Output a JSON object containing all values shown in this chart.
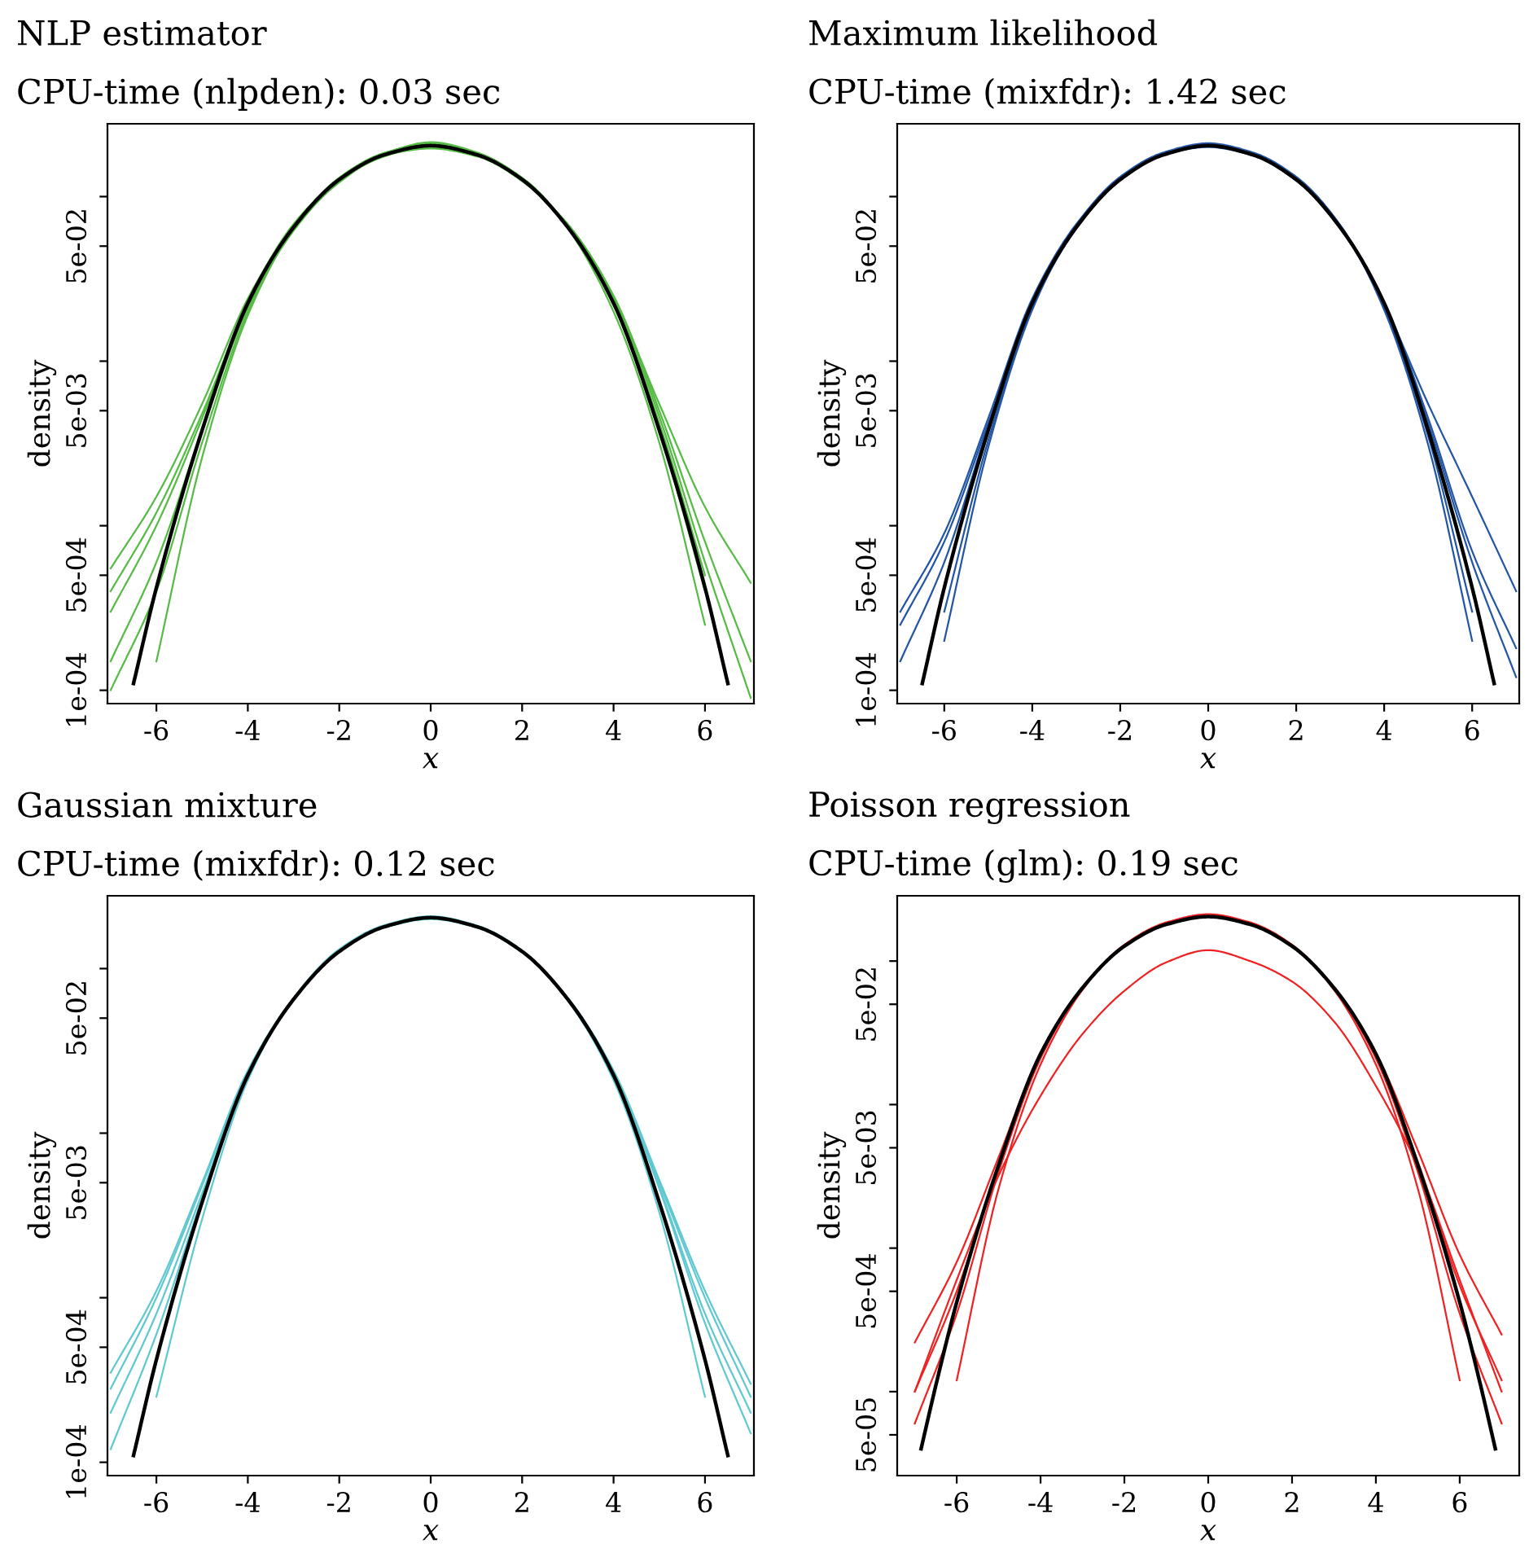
{
  "chart_data": [
    {
      "type": "line",
      "title": "NLP estimator",
      "subtitle": "CPU-time (nlpden): 0.03 sec",
      "xlabel": "x",
      "ylabel": "density",
      "log": true,
      "grid": false,
      "xlim": [
        -7.07,
        7.07
      ],
      "xticks": [
        -6,
        -4,
        -2,
        0,
        2,
        4,
        6
      ],
      "ylim": [
        8.3e-05,
        0.277
      ],
      "yticks": [
        {
          "value": 0.0001,
          "label": "1e-04"
        },
        {
          "value": 0.0005,
          "label": "5e-04"
        },
        {
          "value": 0.001,
          "label": null
        },
        {
          "value": 0.005,
          "label": "5e-03"
        },
        {
          "value": 0.01,
          "label": null
        },
        {
          "value": 0.05,
          "label": "5e-02"
        },
        {
          "value": 0.1,
          "label": null
        }
      ],
      "series": [
        {
          "color": "#55bb44",
          "x": [
            -7,
            -6,
            -5,
            -4,
            -3,
            -2,
            -1,
            0,
            1,
            2,
            3,
            4,
            5,
            6,
            7
          ],
          "values": [
            0.00055,
            0.0015,
            0.0055,
            0.024,
            0.066,
            0.128,
            0.18,
            0.2,
            0.18,
            0.127,
            0.066,
            0.024,
            0.0055,
            0.0013,
            0.00045
          ]
        },
        {
          "color": "#55bb44",
          "x": [
            -6,
            -5,
            -4,
            -3,
            -2,
            -1,
            0,
            1,
            2,
            3,
            4,
            5,
            6
          ],
          "values": [
            0.00015,
            0.0026,
            0.019,
            0.064,
            0.13,
            0.185,
            0.21,
            0.185,
            0.13,
            0.064,
            0.02,
            0.0032,
            0.00025
          ]
        },
        {
          "color": "#55bb44",
          "x": [
            -7,
            -6,
            -5,
            -4,
            -3,
            -2,
            -1,
            0,
            1,
            2,
            3,
            4,
            5,
            6,
            7
          ],
          "values": [
            0.0003,
            0.001,
            0.0045,
            0.023,
            0.068,
            0.126,
            0.176,
            0.205,
            0.183,
            0.124,
            0.068,
            0.025,
            0.005,
            0.0008,
            0.00015
          ]
        },
        {
          "color": "#55bb44",
          "x": [
            -7,
            -6,
            -5,
            -4,
            -3,
            -2,
            -1,
            0,
            1,
            2,
            3,
            4,
            5,
            6
          ],
          "values": [
            0.00015,
            0.0006,
            0.0038,
            0.021,
            0.062,
            0.124,
            0.182,
            0.214,
            0.186,
            0.128,
            0.065,
            0.023,
            0.0042,
            0.0005
          ]
        },
        {
          "color": "#55bb44",
          "x": [
            -7,
            -6,
            -5,
            -4,
            -3,
            -2,
            -1,
            0,
            1,
            2,
            3,
            4,
            5,
            6,
            7
          ],
          "values": [
            0.0004,
            0.0012,
            0.0048,
            0.022,
            0.063,
            0.122,
            0.178,
            0.196,
            0.176,
            0.125,
            0.067,
            0.024,
            0.0046,
            0.0006,
            9e-05
          ]
        },
        {
          "color": "#55bb44",
          "x": [
            -7,
            -6,
            -5,
            -4,
            -3,
            -2,
            -1,
            0,
            1,
            2,
            3,
            4,
            5,
            6
          ],
          "values": [
            0.0001,
            0.0004,
            0.0032,
            0.02,
            0.065,
            0.13,
            0.183,
            0.208,
            0.18,
            0.13,
            0.066,
            0.022,
            0.0038,
            0.0004
          ]
        },
        {
          "color": "#000000",
          "x": [
            -6.5,
            -6,
            -5,
            -4,
            -3,
            -2,
            -1,
            0,
            1,
            2,
            3,
            4,
            5,
            6,
            6.5
          ],
          "values": [
            0.00011,
            0.00042,
            0.0038,
            0.0225,
            0.065,
            0.127,
            0.18,
            0.204,
            0.18,
            0.127,
            0.065,
            0.0225,
            0.0038,
            0.00042,
            0.00011
          ]
        }
      ]
    },
    {
      "type": "line",
      "title": "Maximum likelihood",
      "subtitle": "CPU-time (mixfdr): 1.42 sec",
      "xlabel": "x",
      "ylabel": "density",
      "log": true,
      "grid": false,
      "xlim": [
        -7.07,
        7.07
      ],
      "xticks": [
        -6,
        -4,
        -2,
        0,
        2,
        4,
        6
      ],
      "ylim": [
        8.3e-05,
        0.277
      ],
      "yticks": [
        {
          "value": 0.0001,
          "label": "1e-04"
        },
        {
          "value": 0.0005,
          "label": "5e-04"
        },
        {
          "value": 0.001,
          "label": null
        },
        {
          "value": 0.005,
          "label": "5e-03"
        },
        {
          "value": 0.01,
          "label": null
        },
        {
          "value": 0.05,
          "label": "5e-02"
        },
        {
          "value": 0.1,
          "label": null
        }
      ],
      "series": [
        {
          "color": "#2255a4",
          "x": [
            -7,
            -6,
            -5,
            -4,
            -3,
            -2,
            -1,
            0,
            1,
            2,
            3,
            4,
            5,
            6,
            7
          ],
          "values": [
            0.0003,
            0.0009,
            0.0045,
            0.024,
            0.068,
            0.13,
            0.182,
            0.206,
            0.182,
            0.127,
            0.066,
            0.023,
            0.0045,
            0.0007,
            0.00018
          ]
        },
        {
          "color": "#2255a4",
          "x": [
            -7,
            -6,
            -5,
            -4,
            -3,
            -2,
            -1,
            0,
            1,
            2,
            3,
            4,
            5,
            6,
            7
          ],
          "values": [
            0.00015,
            0.0006,
            0.004,
            0.023,
            0.066,
            0.128,
            0.18,
            0.2,
            0.178,
            0.125,
            0.064,
            0.022,
            0.0042,
            0.0006,
            0.00012
          ]
        },
        {
          "color": "#2255a4",
          "x": [
            -6,
            -5,
            -4,
            -3,
            -2,
            -1,
            0,
            1,
            2,
            3,
            4,
            5,
            6
          ],
          "values": [
            0.0003,
            0.0033,
            0.021,
            0.064,
            0.126,
            0.18,
            0.208,
            0.184,
            0.13,
            0.067,
            0.021,
            0.0035,
            0.0003
          ]
        },
        {
          "color": "#2255a4",
          "x": [
            -7,
            -6,
            -5,
            -4,
            -3,
            -2,
            -1,
            0,
            1,
            2,
            3,
            4,
            5,
            6,
            7
          ],
          "values": [
            0.00025,
            0.0008,
            0.0042,
            0.022,
            0.065,
            0.127,
            0.18,
            0.205,
            0.18,
            0.126,
            0.065,
            0.022,
            0.0055,
            0.0015,
            0.0004
          ]
        },
        {
          "color": "#2255a4",
          "x": [
            -6,
            -5,
            -4,
            -3,
            -2,
            -1,
            0,
            1,
            2,
            3,
            4,
            5,
            6
          ],
          "values": [
            0.0002,
            0.003,
            0.0205,
            0.067,
            0.132,
            0.186,
            0.211,
            0.186,
            0.132,
            0.067,
            0.0205,
            0.0031,
            0.0002
          ]
        },
        {
          "color": "#000000",
          "x": [
            -6.5,
            -6,
            -5,
            -4,
            -3,
            -2,
            -1,
            0,
            1,
            2,
            3,
            4,
            5,
            6,
            6.5
          ],
          "values": [
            0.00011,
            0.00042,
            0.0038,
            0.0225,
            0.065,
            0.127,
            0.18,
            0.204,
            0.18,
            0.127,
            0.065,
            0.0225,
            0.0038,
            0.00042,
            0.00011
          ]
        }
      ]
    },
    {
      "type": "line",
      "title": "Gaussian mixture",
      "subtitle": "CPU-time (mixfdr): 0.12 sec",
      "xlabel": "x",
      "ylabel": "density",
      "log": true,
      "grid": false,
      "xlim": [
        -7.07,
        7.07
      ],
      "xticks": [
        -6,
        -4,
        -2,
        0,
        2,
        4,
        6
      ],
      "ylim": [
        8.3e-05,
        0.277
      ],
      "yticks": [
        {
          "value": 0.0001,
          "label": "1e-04"
        },
        {
          "value": 0.0005,
          "label": "5e-04"
        },
        {
          "value": 0.001,
          "label": null
        },
        {
          "value": 0.005,
          "label": "5e-03"
        },
        {
          "value": 0.01,
          "label": null
        },
        {
          "value": 0.05,
          "label": "5e-02"
        },
        {
          "value": 0.1,
          "label": null
        }
      ],
      "series": [
        {
          "color": "#5fc8d0",
          "x": [
            -7,
            -6,
            -5,
            -4,
            -3,
            -2,
            -1,
            0,
            1,
            2,
            3,
            4,
            5,
            6,
            7
          ],
          "values": [
            0.00035,
            0.0011,
            0.005,
            0.024,
            0.066,
            0.127,
            0.178,
            0.2,
            0.178,
            0.126,
            0.066,
            0.024,
            0.0052,
            0.0011,
            0.0003
          ]
        },
        {
          "color": "#5fc8d0",
          "x": [
            -7,
            -6,
            -5,
            -4,
            -3,
            -2,
            -1,
            0,
            1,
            2,
            3,
            4,
            5,
            6,
            7
          ],
          "values": [
            0.0002,
            0.0008,
            0.0043,
            0.023,
            0.065,
            0.128,
            0.18,
            0.203,
            0.18,
            0.127,
            0.065,
            0.023,
            0.0047,
            0.0008,
            0.0002
          ]
        },
        {
          "color": "#5fc8d0",
          "x": [
            -6,
            -5,
            -4,
            -3,
            -2,
            -1,
            0,
            1,
            2,
            3,
            4,
            5,
            6
          ],
          "values": [
            0.00025,
            0.003,
            0.021,
            0.066,
            0.131,
            0.184,
            0.208,
            0.183,
            0.129,
            0.064,
            0.021,
            0.0033,
            0.00025
          ]
        },
        {
          "color": "#5fc8d0",
          "x": [
            -7,
            -6,
            -5,
            -4,
            -3,
            -2,
            -1,
            0,
            1,
            2,
            3,
            4,
            5,
            6,
            7
          ],
          "values": [
            0.00012,
            0.0006,
            0.004,
            0.0225,
            0.065,
            0.128,
            0.181,
            0.205,
            0.181,
            0.128,
            0.066,
            0.0235,
            0.0046,
            0.0007,
            0.00015
          ]
        },
        {
          "color": "#5fc8d0",
          "x": [
            -7,
            -6,
            -5,
            -4,
            -3,
            -2,
            -1,
            0,
            1,
            2,
            3,
            4,
            5,
            6,
            7
          ],
          "values": [
            0.00028,
            0.001,
            0.0048,
            0.0235,
            0.066,
            0.127,
            0.179,
            0.201,
            0.179,
            0.126,
            0.066,
            0.0235,
            0.005,
            0.001,
            0.00025
          ]
        },
        {
          "color": "#000000",
          "x": [
            -6.5,
            -6,
            -5,
            -4,
            -3,
            -2,
            -1,
            0,
            1,
            2,
            3,
            4,
            5,
            6,
            6.5
          ],
          "values": [
            0.00011,
            0.00042,
            0.0038,
            0.0225,
            0.065,
            0.127,
            0.18,
            0.204,
            0.18,
            0.127,
            0.065,
            0.0225,
            0.0038,
            0.00042,
            0.00011
          ]
        }
      ]
    },
    {
      "type": "line",
      "title": "Poisson regression",
      "subtitle": "CPU-time (glm): 0.19 sec",
      "xlabel": "x",
      "ylabel": "density",
      "log": true,
      "grid": false,
      "xlim": [
        -7.42,
        7.42
      ],
      "xticks": [
        -6,
        -4,
        -2,
        0,
        2,
        4,
        6
      ],
      "ylim": [
        2.6e-05,
        0.285
      ],
      "yticks": [
        {
          "value": 5e-05,
          "label": "5e-05"
        },
        {
          "value": 0.0001,
          "label": null
        },
        {
          "value": 0.0005,
          "label": "5e-04"
        },
        {
          "value": 0.001,
          "label": null
        },
        {
          "value": 0.005,
          "label": "5e-03"
        },
        {
          "value": 0.01,
          "label": null
        },
        {
          "value": 0.05,
          "label": "5e-02"
        },
        {
          "value": 0.1,
          "label": null
        }
      ],
      "series": [
        {
          "color": "#ee2222",
          "x": [
            -7,
            -6,
            -5,
            -4,
            -3,
            -2,
            -1,
            0,
            1,
            2,
            3,
            4,
            5,
            6,
            7
          ],
          "values": [
            0.00022,
            0.0008,
            0.0043,
            0.023,
            0.066,
            0.128,
            0.181,
            0.205,
            0.181,
            0.128,
            0.066,
            0.023,
            0.0048,
            0.0009,
            0.00025
          ]
        },
        {
          "color": "#ee2222",
          "x": [
            -6,
            -5,
            -4,
            -3,
            -2,
            -1,
            0,
            1,
            2,
            3,
            4,
            5,
            6
          ],
          "values": [
            0.00012,
            0.0026,
            0.019,
            0.063,
            0.13,
            0.186,
            0.212,
            0.186,
            0.13,
            0.063,
            0.019,
            0.0026,
            0.00012
          ]
        },
        {
          "color": "#ee2222",
          "x": [
            -7,
            -6,
            -5,
            -4,
            -3,
            -2,
            -1,
            0,
            1,
            2,
            3,
            4,
            5,
            6,
            7
          ],
          "values": [
            6e-05,
            0.00035,
            0.0034,
            0.021,
            0.065,
            0.129,
            0.183,
            0.207,
            0.183,
            0.129,
            0.065,
            0.021,
            0.0034,
            0.00035,
            6e-05
          ]
        },
        {
          "color": "#ee2222",
          "x": [
            -7,
            -6,
            -5,
            -4,
            -3,
            -2,
            -1,
            0,
            1,
            2,
            3,
            4,
            5,
            6,
            7
          ],
          "values": [
            0.0001,
            0.0006,
            0.0032,
            0.0115,
            0.031,
            0.062,
            0.098,
            0.119,
            0.1,
            0.072,
            0.038,
            0.0135,
            0.0037,
            0.0006,
            0.0001
          ]
        },
        {
          "color": "#ee2222",
          "x": [
            -7,
            -6,
            -5,
            -4,
            -3,
            -2,
            -1,
            0,
            1,
            2,
            3,
            4,
            5,
            6,
            7
          ],
          "values": [
            0.0001,
            0.0005,
            0.0037,
            0.022,
            0.065,
            0.127,
            0.18,
            0.203,
            0.18,
            0.127,
            0.065,
            0.022,
            0.004,
            0.00055,
            0.00012
          ]
        },
        {
          "color": "#000000",
          "x": [
            -6.85,
            -6.5,
            -6,
            -5,
            -4,
            -3,
            -2,
            -1,
            0,
            1,
            2,
            3,
            4,
            5,
            6,
            6.5,
            6.85
          ],
          "values": [
            4e-05,
            0.00011,
            0.00042,
            0.0038,
            0.0225,
            0.065,
            0.127,
            0.18,
            0.204,
            0.18,
            0.127,
            0.065,
            0.0225,
            0.0038,
            0.00042,
            0.00011,
            4e-05
          ]
        }
      ]
    }
  ]
}
